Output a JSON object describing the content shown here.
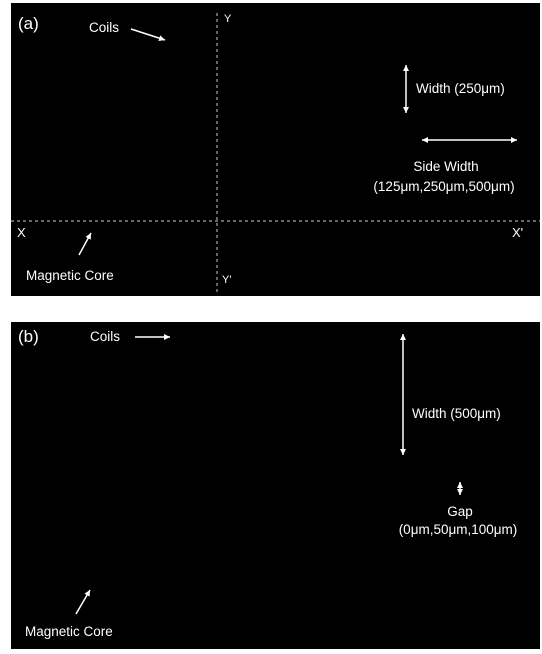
{
  "panel_a": {
    "label": "(a)",
    "coils_label": "Coils",
    "width_label": "Width (250μm)",
    "side_width_label": "Side Width",
    "side_width_values": "(125μm,250μm,500μm)",
    "core_label": "Magnetic Core",
    "axis_x_start": "X",
    "axis_x_end": "X'",
    "axis_y_start": "Y",
    "axis_y_end": "Y'"
  },
  "panel_b": {
    "label": "(b)",
    "coils_label": "Coils",
    "width_label": "Width (500μm)",
    "gap_label": "Gap",
    "gap_values": "(0μm,50μm,100μm)",
    "core_label": "Magnetic Core"
  },
  "colors": {
    "background": "#000000",
    "text": "#ffffff",
    "axis_line": "#cccccc"
  }
}
